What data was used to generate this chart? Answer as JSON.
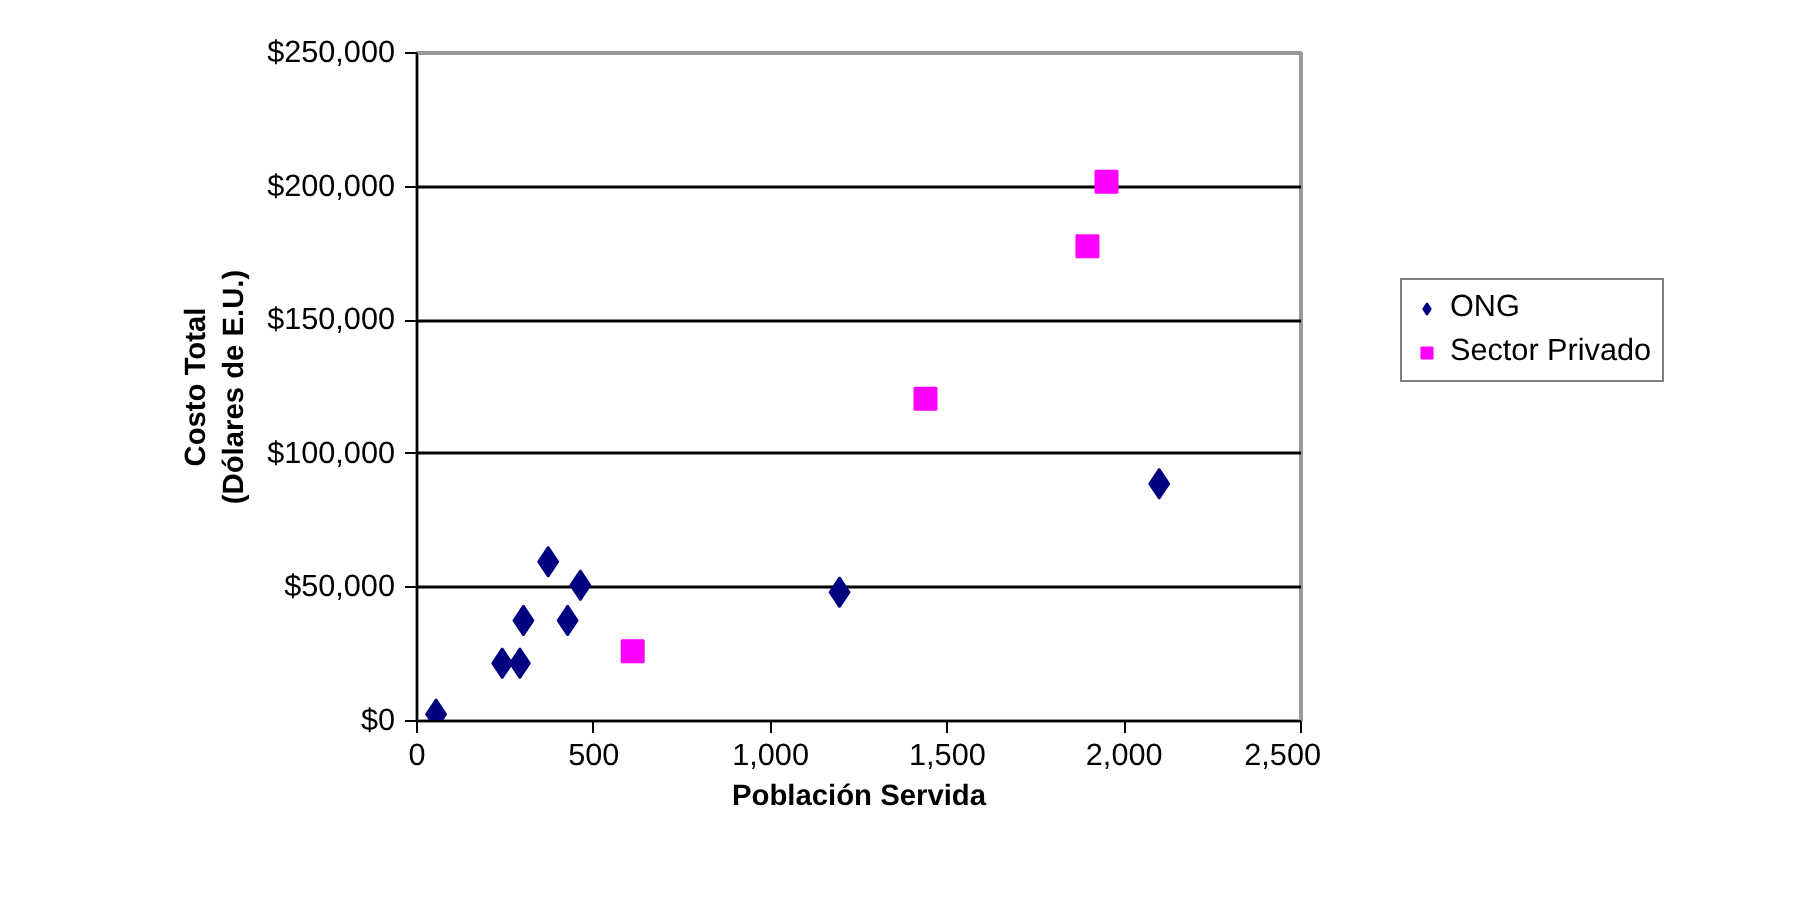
{
  "chart_data": {
    "type": "scatter",
    "xlabel": "Población Servida",
    "ylabel": "Costo Total\n(Dólares de E.U.)",
    "xlim": [
      0,
      2500
    ],
    "xticks": [
      0,
      {
        "value": 500,
        "label": "500"
      },
      {
        "value": 1000,
        "label": "1,000"
      },
      {
        "value": 1500,
        "label": "1,500"
      },
      {
        "value": 2000,
        "label": "2,000"
      },
      {
        "value": 2500,
        "label": "2,500"
      }
    ],
    "ylim": [
      0,
      250000
    ],
    "yticks": [
      {
        "value": 0,
        "label": "$0"
      },
      {
        "value": 50000,
        "label": "$50,000"
      },
      {
        "value": 100000,
        "label": "$100,000"
      },
      {
        "value": 150000,
        "label": "$150,000"
      },
      {
        "value": 200000,
        "label": "$200,000"
      },
      {
        "value": 250000,
        "label": "$250,000"
      }
    ],
    "grid": "y",
    "legend": "right",
    "series": [
      {
        "name": "ONG",
        "color": "#000080",
        "marker": "diamond",
        "x": [
          54,
          241,
          291,
          301,
          426,
          371,
          462,
          1195,
          2099
        ],
        "values": [
          2500,
          21600,
          21600,
          37600,
          37600,
          59600,
          50800,
          48200,
          88800
        ]
      },
      {
        "name": "Sector Privado",
        "color": "#ff00ff",
        "marker": "square",
        "x": [
          610,
          1438,
          1896,
          1950
        ],
        "values": [
          26100,
          120600,
          177700,
          201800
        ]
      }
    ]
  }
}
